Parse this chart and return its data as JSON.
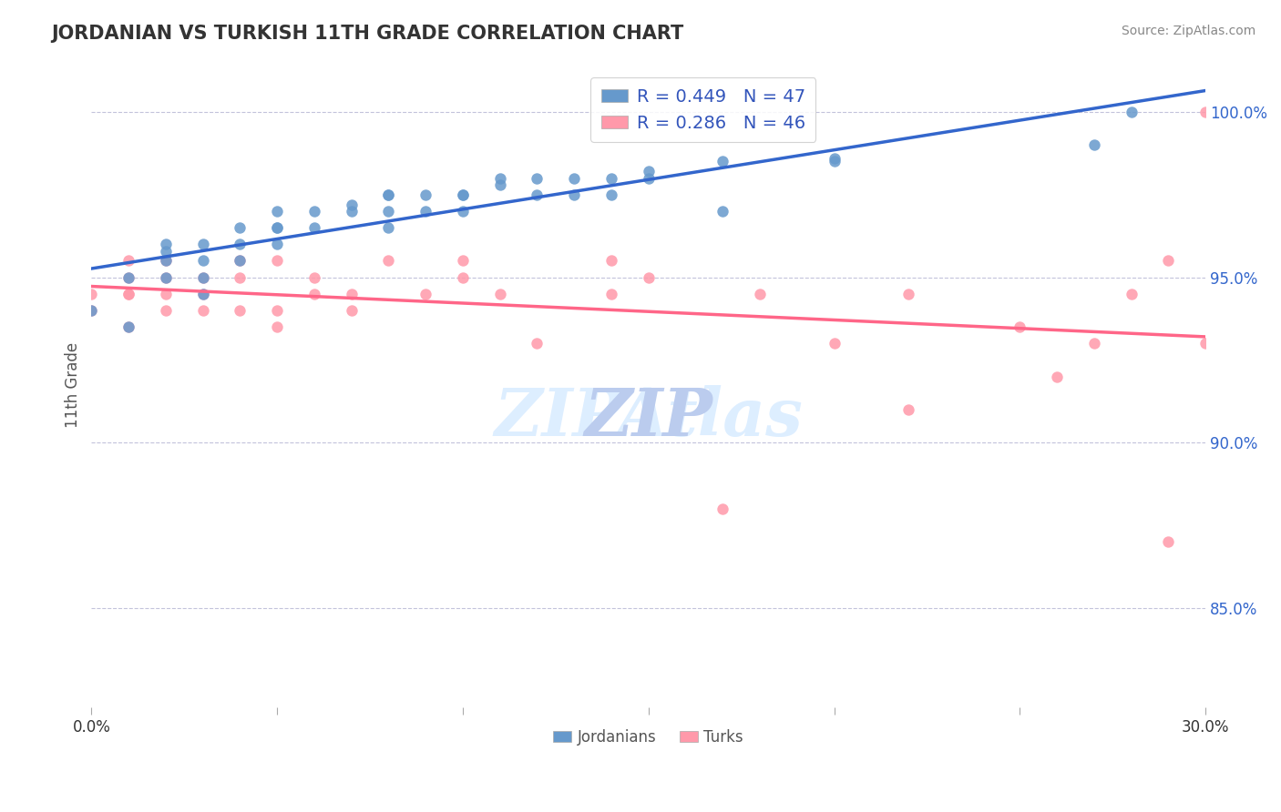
{
  "title": "JORDANIAN VS TURKISH 11TH GRADE CORRELATION CHART",
  "source_text": "Source: ZipAtlas.com",
  "ylabel": "11th Grade",
  "xlabel": "",
  "xlim": [
    0.0,
    0.3
  ],
  "ylim": [
    0.82,
    1.01
  ],
  "xtick_labels": [
    "0.0%",
    "",
    "",
    "",
    "",
    "",
    "30.0%"
  ],
  "ytick_labels": [
    "85.0%",
    "90.0%",
    "95.0%",
    "100.0%"
  ],
  "ytick_vals": [
    0.85,
    0.9,
    0.95,
    1.0
  ],
  "xtick_vals": [
    0.0,
    0.05,
    0.1,
    0.15,
    0.2,
    0.25,
    0.3
  ],
  "blue_color": "#6699CC",
  "pink_color": "#FF99AA",
  "blue_line_color": "#3366CC",
  "pink_line_color": "#FF6688",
  "legend_text_color": "#3355BB",
  "watermark_color": "#DDEEFF",
  "R_jordan": 0.449,
  "N_jordan": 47,
  "R_turk": 0.286,
  "N_turk": 46,
  "jordan_x": [
    0.0,
    0.01,
    0.01,
    0.02,
    0.02,
    0.02,
    0.02,
    0.03,
    0.03,
    0.03,
    0.03,
    0.04,
    0.04,
    0.04,
    0.05,
    0.05,
    0.05,
    0.05,
    0.06,
    0.06,
    0.07,
    0.07,
    0.08,
    0.08,
    0.08,
    0.08,
    0.09,
    0.09,
    0.1,
    0.1,
    0.1,
    0.11,
    0.11,
    0.12,
    0.12,
    0.13,
    0.13,
    0.14,
    0.14,
    0.15,
    0.15,
    0.17,
    0.17,
    0.2,
    0.2,
    0.27,
    0.28
  ],
  "jordan_y": [
    0.94,
    0.95,
    0.935,
    0.96,
    0.958,
    0.955,
    0.95,
    0.96,
    0.955,
    0.95,
    0.945,
    0.965,
    0.96,
    0.955,
    0.965,
    0.96,
    0.965,
    0.97,
    0.97,
    0.965,
    0.972,
    0.97,
    0.975,
    0.975,
    0.97,
    0.965,
    0.97,
    0.975,
    0.975,
    0.975,
    0.97,
    0.978,
    0.98,
    0.98,
    0.975,
    0.98,
    0.975,
    0.975,
    0.98,
    0.98,
    0.982,
    0.985,
    0.97,
    0.986,
    0.985,
    0.99,
    1.0
  ],
  "turk_x": [
    0.0,
    0.0,
    0.01,
    0.01,
    0.01,
    0.01,
    0.01,
    0.02,
    0.02,
    0.02,
    0.02,
    0.03,
    0.03,
    0.03,
    0.04,
    0.04,
    0.04,
    0.05,
    0.05,
    0.05,
    0.06,
    0.06,
    0.07,
    0.07,
    0.08,
    0.09,
    0.1,
    0.1,
    0.11,
    0.12,
    0.14,
    0.14,
    0.15,
    0.17,
    0.18,
    0.2,
    0.22,
    0.22,
    0.25,
    0.26,
    0.27,
    0.28,
    0.29,
    0.29,
    0.3,
    0.3
  ],
  "turk_y": [
    0.945,
    0.94,
    0.95,
    0.945,
    0.955,
    0.945,
    0.935,
    0.95,
    0.955,
    0.945,
    0.94,
    0.95,
    0.945,
    0.94,
    0.95,
    0.955,
    0.94,
    0.955,
    0.94,
    0.935,
    0.945,
    0.95,
    0.945,
    0.94,
    0.955,
    0.945,
    0.95,
    0.955,
    0.945,
    0.93,
    0.955,
    0.945,
    0.95,
    0.88,
    0.945,
    0.93,
    0.945,
    0.91,
    0.935,
    0.92,
    0.93,
    0.945,
    0.87,
    0.955,
    0.93,
    1.0
  ]
}
